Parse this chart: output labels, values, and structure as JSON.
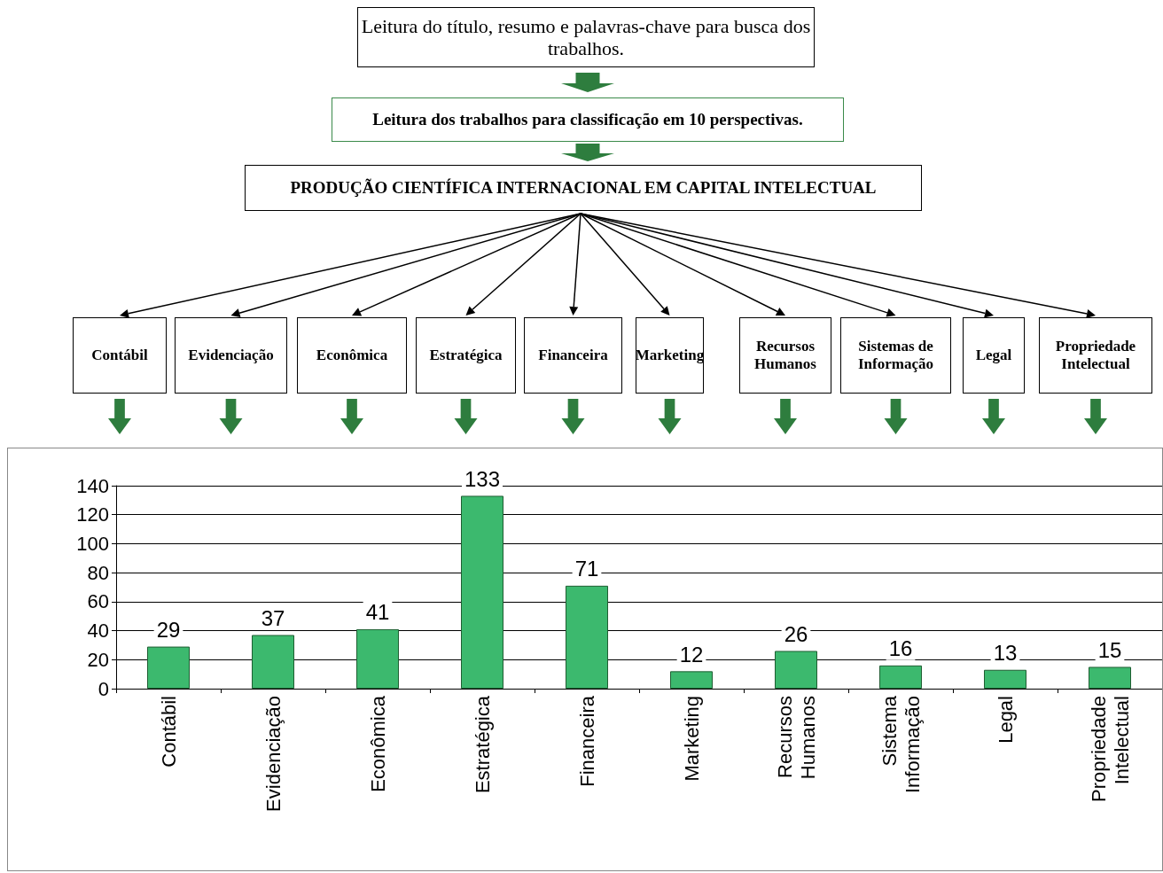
{
  "chart_data": {
    "type": "bar",
    "categories": [
      "Contábil",
      "Evidenciação",
      "Econômica",
      "Estratégica",
      "Financeira",
      "Marketing",
      "Recursos Humanos",
      "Sistema Informação",
      "Legal",
      "Propriedade Intelectual"
    ],
    "values": [
      29,
      37,
      41,
      133,
      71,
      12,
      26,
      16,
      13,
      15
    ],
    "color": "#3cb96e",
    "ylim": [
      0,
      140
    ],
    "yticks": [
      0,
      20,
      40,
      60,
      80,
      100,
      120,
      140
    ],
    "grid": "y",
    "data_labels": true,
    "annotations": [
      "Leitura do título, resumo  e palavras-chave para busca dos trabalhos.",
      "Leitura dos trabalhos para classificação em 10 perspectivas.",
      "PRODUÇÃO CIENTÍFICA INTERNACIONAL EM CAPITAL INTELECTUAL",
      "Contábil",
      "Evidenciação",
      "Econômica",
      "Estratégica",
      "Financeira",
      "Marketing",
      "Recursos Humanos",
      "Sistemas de Informação",
      "Legal",
      "Propriedade Intelectual"
    ]
  }
}
